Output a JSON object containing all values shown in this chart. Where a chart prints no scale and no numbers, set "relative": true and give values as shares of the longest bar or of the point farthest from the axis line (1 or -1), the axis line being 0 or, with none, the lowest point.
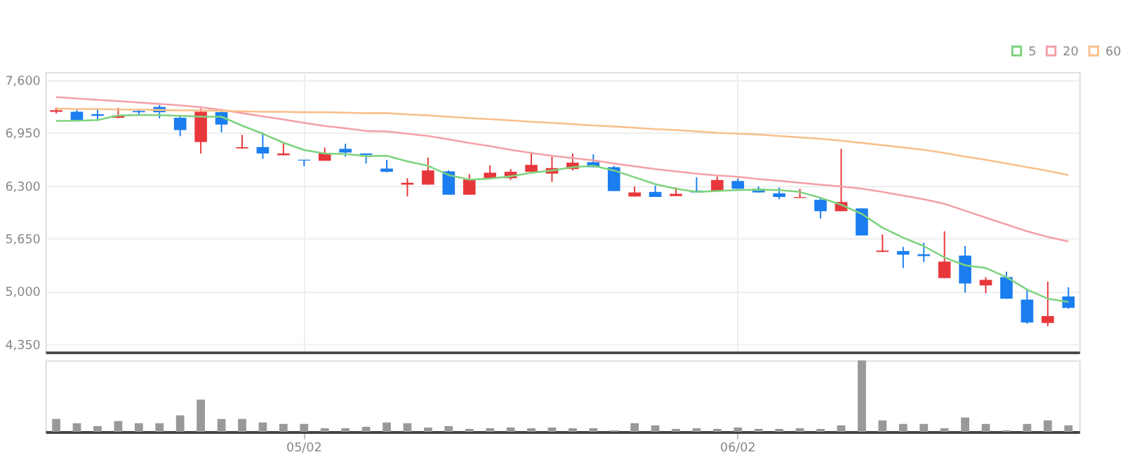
{
  "chart_data": [
    {
      "type": "candlestick",
      "categories": [
        null,
        null,
        null,
        null,
        null,
        null,
        null,
        null,
        null,
        null,
        null,
        null,
        null,
        null,
        null,
        null,
        null,
        null,
        null,
        null,
        null,
        null,
        null,
        null,
        null,
        null,
        null,
        null,
        null,
        null,
        null,
        null,
        null,
        null,
        null,
        null,
        null,
        null,
        null,
        null,
        null,
        null,
        null,
        null,
        null,
        null,
        null,
        null,
        null,
        null
      ],
      "ohlc": [
        [
          7210,
          7260,
          7190,
          7230
        ],
        [
          7211,
          7234,
          7092,
          7109
        ],
        [
          7180,
          7250,
          7100,
          7160
        ],
        [
          7137,
          7260,
          7130,
          7165
        ],
        [
          7220,
          7245,
          7180,
          7205
        ],
        [
          7270,
          7295,
          7130,
          7205
        ],
        [
          7137,
          7165,
          6910,
          6985
        ],
        [
          6838,
          7250,
          6697,
          7211
        ],
        [
          7205,
          7233,
          6957,
          7053
        ],
        [
          6760,
          6925,
          6755,
          6775
        ],
        [
          6776,
          6957,
          6630,
          6697
        ],
        [
          6675,
          6827,
          6675,
          6697
        ],
        [
          6620,
          6620,
          6540,
          6610
        ],
        [
          6607,
          6770,
          6607,
          6697
        ],
        [
          6754,
          6816,
          6658,
          6709
        ],
        [
          6697,
          6697,
          6573,
          6680
        ],
        [
          6511,
          6618,
          6465,
          6471
        ],
        [
          6313,
          6392,
          6167,
          6336
        ],
        [
          6313,
          6646,
          6313,
          6488
        ],
        [
          6477,
          6488,
          6189,
          6189
        ],
        [
          6189,
          6443,
          6189,
          6375
        ],
        [
          6392,
          6550,
          6392,
          6460
        ],
        [
          6392,
          6505,
          6370,
          6471
        ],
        [
          6471,
          6697,
          6471,
          6556
        ],
        [
          6449,
          6658,
          6347,
          6517
        ],
        [
          6505,
          6697,
          6488,
          6584
        ],
        [
          6590,
          6686,
          6528,
          6528
        ],
        [
          6528,
          6545,
          6234,
          6234
        ],
        [
          6167,
          6291,
          6167,
          6217
        ],
        [
          6223,
          6302,
          6161,
          6161
        ],
        [
          6172,
          6279,
          6172,
          6200
        ],
        [
          6240,
          6404,
          6217,
          6217
        ],
        [
          6234,
          6415,
          6234,
          6370
        ],
        [
          6358,
          6392,
          6262,
          6262
        ],
        [
          6262,
          6291,
          6217,
          6217
        ],
        [
          6206,
          6279,
          6133,
          6161
        ],
        [
          6150,
          6262,
          6150,
          6161
        ],
        [
          6127,
          6150,
          5896,
          5986
        ],
        [
          5986,
          6754,
          5986,
          6099
        ],
        [
          6020,
          6020,
          5687,
          5687
        ],
        [
          5484,
          5698,
          5484,
          5501
        ],
        [
          5495,
          5546,
          5286,
          5450
        ],
        [
          5456,
          5597,
          5360,
          5433
        ],
        [
          5162,
          5738,
          5162,
          5365
        ],
        [
          5439,
          5557,
          4982,
          5095
        ],
        [
          5072,
          5174,
          4976,
          5140
        ],
        [
          5174,
          5241,
          4908,
          4908
        ],
        [
          4897,
          5033,
          4598,
          4615
        ],
        [
          4609,
          5117,
          4570,
          4694
        ],
        [
          4936,
          5050,
          4784,
          4795
        ]
      ],
      "colors": [
        "#e8373b",
        "#1a7ef0",
        "#1a7ef0",
        "#e8373b",
        "#1a7ef0",
        "#1a7ef0",
        "#1a7ef0",
        "#e8373b",
        "#1a7ef0",
        "#e8373b",
        "#1a7ef0",
        "#e8373b",
        "#1a7ef0",
        "#e8373b",
        "#1a7ef0",
        "#1a7ef0",
        "#1a7ef0",
        "#e8373b",
        "#e8373b",
        "#1a7ef0",
        "#e8373b",
        "#e8373b",
        "#e8373b",
        "#e8373b",
        "#e8373b",
        "#e8373b",
        "#1a7ef0",
        "#1a7ef0",
        "#e8373b",
        "#1a7ef0",
        "#e8373b",
        "#1a7ef0",
        "#e8373b",
        "#1a7ef0",
        "#1a7ef0",
        "#1a7ef0",
        "#e8373b",
        "#1a7ef0",
        "#e8373b",
        "#1a7ef0",
        "#e8373b",
        "#1a7ef0",
        "#1a7ef0",
        "#e8373b",
        "#1a7ef0",
        "#e8373b",
        "#1a7ef0",
        "#1a7ef0",
        "#e8373b",
        "#1a7ef0"
      ],
      "series": [
        {
          "name": "5",
          "type": "line",
          "color": "#7ed37e",
          "values": [
            7098,
            7100,
            7109,
            7165,
            7170,
            7170,
            7160,
            7150,
            7150,
            7040,
            6940,
            6830,
            6740,
            6697,
            6690,
            6665,
            6669,
            6600,
            6545,
            6432,
            6375,
            6387,
            6415,
            6460,
            6488,
            6528,
            6545,
            6488,
            6404,
            6319,
            6262,
            6223,
            6234,
            6245,
            6251,
            6245,
            6223,
            6150,
            6065,
            5952,
            5783,
            5659,
            5557,
            5416,
            5320,
            5286,
            5174,
            5021,
            4908,
            4869
          ]
        },
        {
          "name": "20",
          "type": "line",
          "color": "#f4a0a8",
          "values": [
            7391,
            7374,
            7357,
            7341,
            7324,
            7307,
            7290,
            7267,
            7233,
            7194,
            7154,
            7115,
            7075,
            7036,
            7008,
            6974,
            6968,
            6940,
            6912,
            6872,
            6827,
            6788,
            6742,
            6703,
            6669,
            6641,
            6613,
            6573,
            6539,
            6505,
            6477,
            6449,
            6426,
            6410,
            6381,
            6359,
            6336,
            6313,
            6291,
            6263,
            6223,
            6178,
            6133,
            6077,
            5992,
            5907,
            5823,
            5738,
            5670,
            5614
          ]
        },
        {
          "name": "60",
          "type": "line",
          "color": "#f8c08c",
          "values": [
            7250,
            7245,
            7245,
            7239,
            7239,
            7233,
            7228,
            7228,
            7222,
            7216,
            7211,
            7211,
            7205,
            7205,
            7199,
            7194,
            7194,
            7177,
            7166,
            7149,
            7132,
            7120,
            7104,
            7087,
            7075,
            7058,
            7041,
            7030,
            7013,
            6996,
            6985,
            6968,
            6951,
            6940,
            6929,
            6912,
            6895,
            6878,
            6855,
            6827,
            6799,
            6771,
            6742,
            6703,
            6658,
            6618,
            6573,
            6528,
            6483,
            6432
          ]
        }
      ],
      "ylim": [
        4250,
        7700
      ],
      "yticks": [
        {
          "value": 4350,
          "label": "4,350"
        },
        {
          "value": 5000,
          "label": "5,000"
        },
        {
          "value": 5650,
          "label": "5,650"
        },
        {
          "value": 6300,
          "label": "6,300"
        },
        {
          "value": 6950,
          "label": "6,950"
        },
        {
          "value": 7600,
          "label": "7,600"
        }
      ],
      "grid": true,
      "legend": "top right",
      "tick_labels": "y"
    },
    {
      "type": "bar",
      "relative": true,
      "color": "#999999",
      "tick_labels": "x",
      "categories": [
        null,
        null,
        null,
        null,
        null,
        null,
        null,
        null,
        null,
        null,
        null,
        null,
        "05/02",
        null,
        null,
        null,
        null,
        null,
        null,
        null,
        null,
        null,
        null,
        null,
        null,
        null,
        null,
        null,
        null,
        null,
        null,
        null,
        null,
        "06/02",
        null,
        null,
        null,
        null,
        null,
        null,
        null,
        null,
        null,
        null,
        null,
        null,
        null,
        null,
        null,
        null
      ],
      "values": [
        0.18,
        0.12,
        0.08,
        0.15,
        0.12,
        0.12,
        0.23,
        0.45,
        0.18,
        0.18,
        0.13,
        0.11,
        0.11,
        0.05,
        0.05,
        0.07,
        0.13,
        0.12,
        0.06,
        0.08,
        0.04,
        0.05,
        0.06,
        0.05,
        0.06,
        0.05,
        0.05,
        0.02,
        0.12,
        0.09,
        0.04,
        0.05,
        0.04,
        0.06,
        0.04,
        0.04,
        0.05,
        0.04,
        0.09,
        1,
        0.16,
        0.11,
        0.11,
        0.05,
        0.2,
        0.11,
        0.02,
        0.11,
        0.16,
        0.09
      ]
    }
  ]
}
